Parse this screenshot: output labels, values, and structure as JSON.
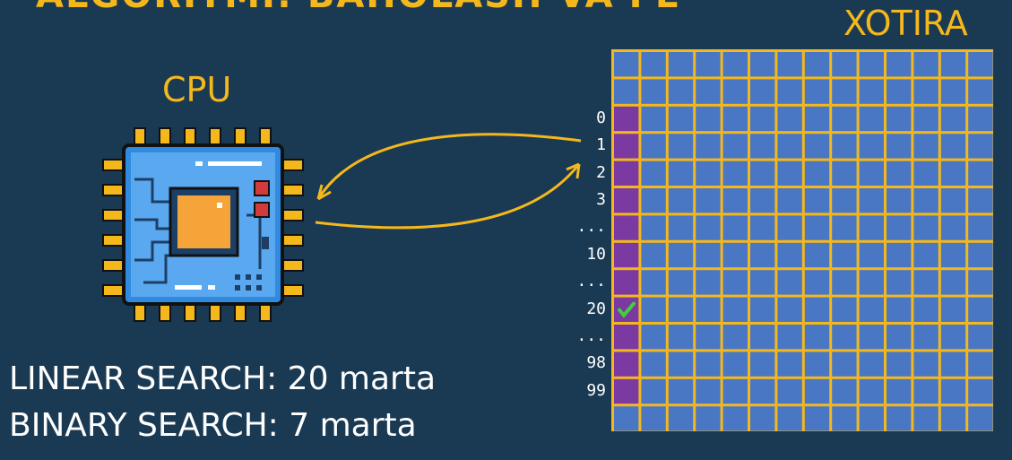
{
  "slide": {
    "title": "ALGORITMI: BAHOLASH VA FE",
    "cpu_label": "CPU",
    "memory_label": "XOTIRA"
  },
  "memory": {
    "rows": 14,
    "cols": 14,
    "addresses": [
      {
        "row": 2,
        "label": "0"
      },
      {
        "row": 3,
        "label": "1"
      },
      {
        "row": 4,
        "label": "2"
      },
      {
        "row": 5,
        "label": "3"
      },
      {
        "row": 6,
        "label": "..."
      },
      {
        "row": 7,
        "label": "10"
      },
      {
        "row": 8,
        "label": "..."
      },
      {
        "row": 9,
        "label": "20"
      },
      {
        "row": 10,
        "label": "..."
      },
      {
        "row": 11,
        "label": "98"
      },
      {
        "row": 12,
        "label": "99"
      }
    ],
    "highlighted_rows": [
      2,
      12
    ],
    "found_row": 9,
    "colors": {
      "grid_line": "#f4b81c",
      "cell": "#4a77c4",
      "highlight": "#7b3aa2",
      "check": "#3ecf3a"
    }
  },
  "stats": {
    "linear": "LINEAR SEARCH: 20 marta",
    "binary": "BINARY SEARCH: 7 marta"
  },
  "icons": [
    "cpu-chip-icon",
    "checkmark-icon",
    "arrow-icon"
  ]
}
